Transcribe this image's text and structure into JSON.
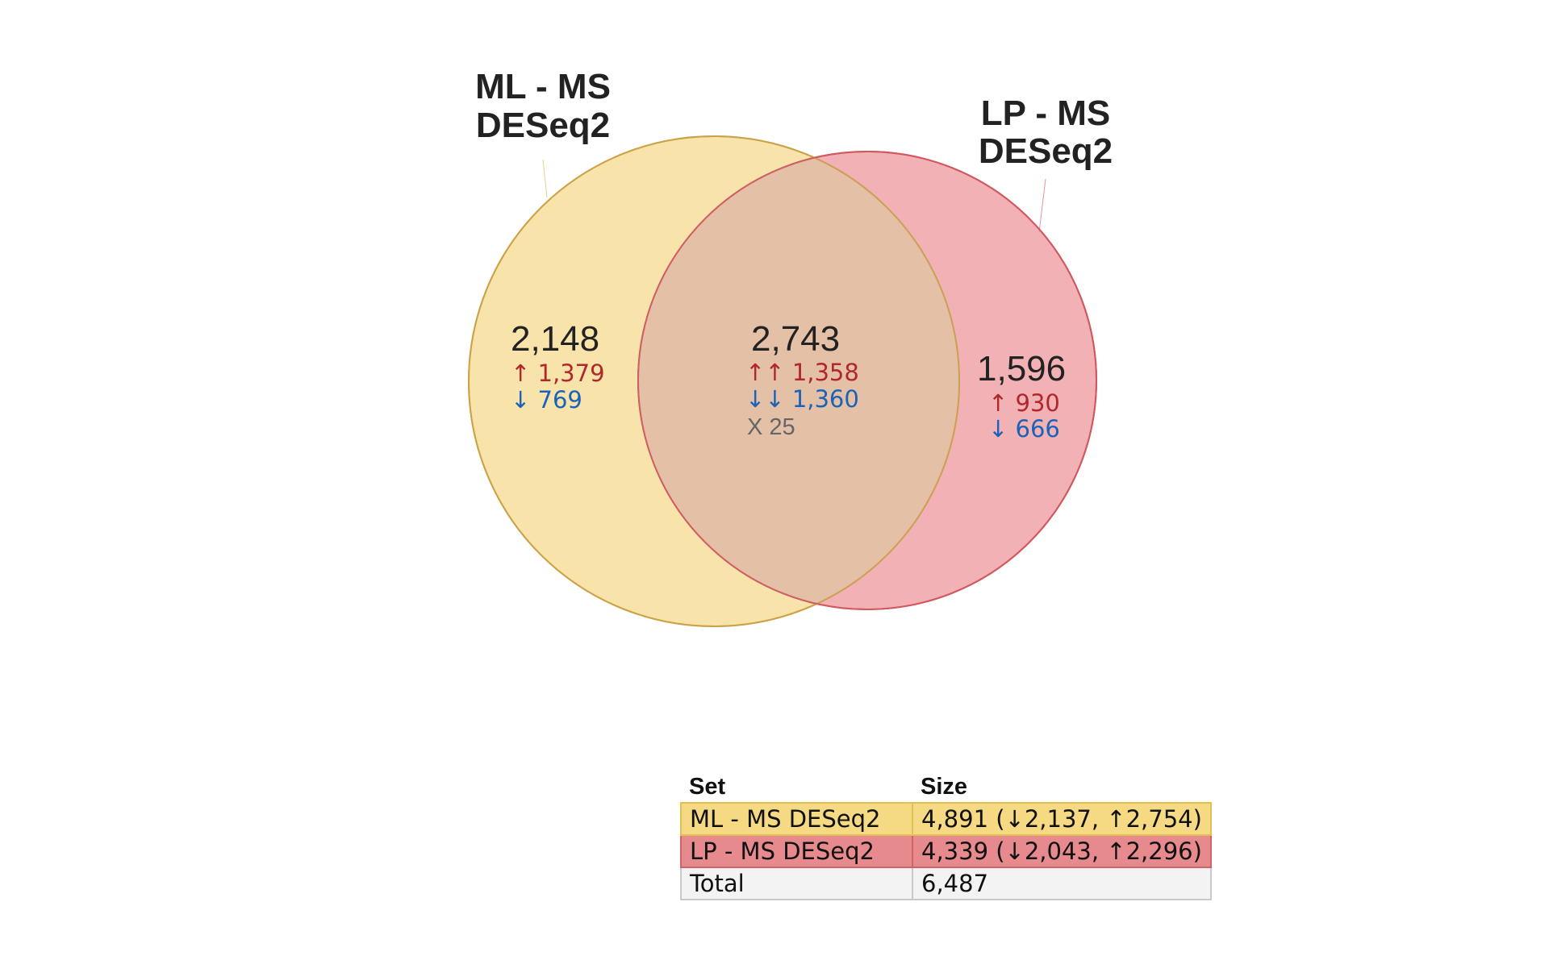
{
  "colors": {
    "set_a_fill": "#f5d98a",
    "set_a_stroke": "#d9b040",
    "set_b_fill": "#ec979c",
    "set_b_stroke": "#d24c54",
    "up": "#b0282c",
    "down": "#1a63b8",
    "mixed": "#666666",
    "row_a": "#f6d983",
    "row_b": "#e78a8e",
    "row_total": "#f3f3f3"
  },
  "sets": [
    {
      "title_line1": "ML - MS",
      "title_line2": "DESeq2"
    },
    {
      "title_line1": "LP - MS",
      "title_line2": "DESeq2"
    }
  ],
  "regions": {
    "only_a": {
      "total": "2,148",
      "up": "↑ 1,379",
      "down": "↓ 769"
    },
    "both": {
      "total": "2,743",
      "up": "↑↑ 1,358",
      "down": "↓↓ 1,360",
      "mixed": "X 25"
    },
    "only_b": {
      "total": "1,596",
      "up": "↑ 930",
      "down": "↓ 666"
    }
  },
  "table": {
    "header_set": "Set",
    "header_size": "Size",
    "rows": [
      {
        "set": "ML - MS DESeq2",
        "size": "4,891 (↓2,137, ↑2,754)"
      },
      {
        "set": "LP - MS DESeq2",
        "size": "4,339 (↓2,043, ↑2,296)"
      },
      {
        "set": "Total",
        "size": "6,487"
      }
    ]
  }
}
